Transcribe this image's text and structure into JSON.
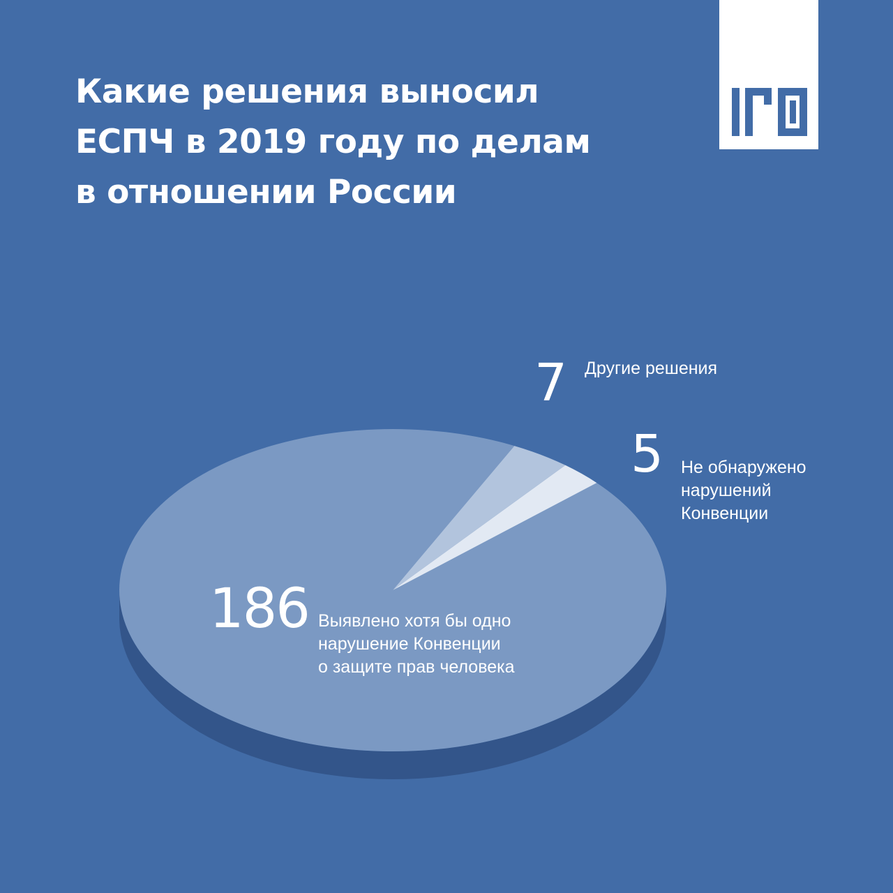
{
  "title": {
    "lines": [
      "Какие решения выносил",
      "ЕСПЧ в 2019 году по делам",
      "в отношении России"
    ]
  },
  "logo": {
    "icon": "brand-logo-icon",
    "color": "#ffffff",
    "mark_color": "#426ca7"
  },
  "colors": {
    "background": "#426ca7",
    "pie_main": "#7b99c3",
    "pie_side": "#33558a",
    "slice_other": "#b2c4dd",
    "slice_no_violation": "#e2e9f3"
  },
  "chart_data": {
    "type": "pie",
    "style": "3d-tilted",
    "title": "Какие решения выносил ЕСПЧ в 2019 году по делам в отношении России",
    "slices": [
      {
        "value": 186,
        "label_lines": [
          "Выявлено хотя бы одно",
          "нарушение Конвенции",
          "о защите прав человека"
        ]
      },
      {
        "value": 7,
        "label_lines": [
          "Другие решения"
        ]
      },
      {
        "value": 5,
        "label_lines": [
          "Не обнаружено",
          "нарушений",
          "Конвенции"
        ]
      }
    ]
  }
}
